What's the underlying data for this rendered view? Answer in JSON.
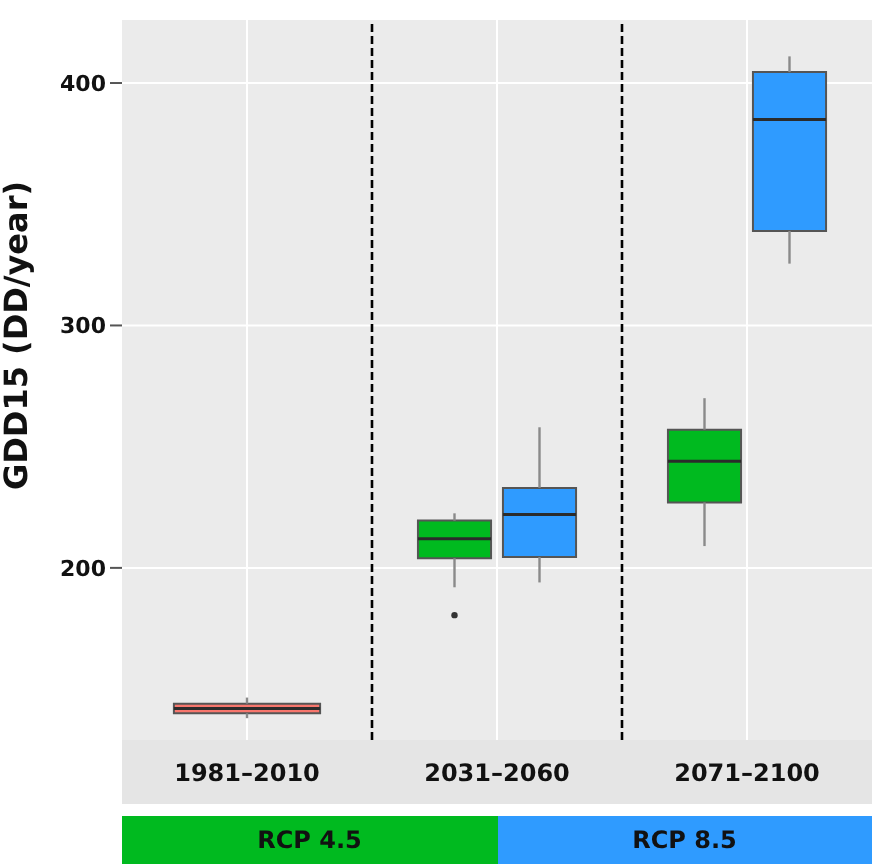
{
  "chart_data": {
    "type": "box",
    "categories": [
      "1981–2010",
      "2031–2060",
      "2071–2100"
    ],
    "ylabel": "GDD15 (DD/year)",
    "ylim": [
      129,
      426
    ],
    "yticks": [
      200,
      300,
      400
    ],
    "grid": true,
    "legend": "bottom",
    "series": [
      {
        "color": "#f8766d",
        "boxes": [
          {
            "low": 138,
            "q1": 140,
            "median": 142,
            "q3": 144,
            "high": 146.5
          },
          null,
          null
        ]
      },
      {
        "name": "RCP 4.5",
        "color": "#00ba1f",
        "boxes": [
          null,
          {
            "low": 192,
            "q1": 204,
            "median": 212,
            "q3": 219.5,
            "high": 222.5,
            "outliers": [
              180.5
            ]
          },
          {
            "low": 209,
            "q1": 227,
            "median": 244,
            "q3": 257,
            "high": 270
          }
        ]
      },
      {
        "name": "RCP 8.5",
        "color": "#2f9bff",
        "boxes": [
          null,
          {
            "low": 194,
            "q1": 204.5,
            "median": 222,
            "q3": 233,
            "high": 258
          },
          {
            "low": 325.5,
            "q1": 339,
            "median": 385,
            "q3": 404.5,
            "high": 411
          }
        ]
      }
    ]
  }
}
